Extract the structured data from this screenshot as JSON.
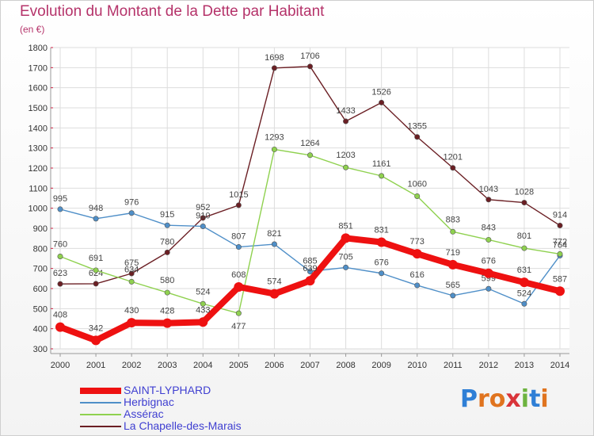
{
  "header": {
    "title": "Evolution du Montant de la Dette par Habitant",
    "unit": "(en €)"
  },
  "logo": {
    "text": "Proxiti",
    "colors": [
      "#2f7fd6",
      "#e0741f",
      "#e0741f",
      "#d9343a",
      "#6db33f",
      "#2f7fd6",
      "#e0741f"
    ]
  },
  "chart_data": {
    "type": "line",
    "title": "Evolution du Montant de la Dette par Habitant",
    "subtitle": "(en €)",
    "xlabel": "",
    "ylabel": "",
    "x": [
      "2000",
      "2001",
      "2002",
      "2003",
      "2004",
      "2005",
      "2006",
      "2007",
      "2008",
      "2009",
      "2010",
      "2011",
      "2012",
      "2013",
      "2014"
    ],
    "ylim": [
      300,
      1800
    ],
    "yticks": [
      300,
      400,
      500,
      600,
      700,
      800,
      900,
      1000,
      1100,
      1200,
      1300,
      1400,
      1500,
      1600,
      1700,
      1800
    ],
    "grid": true,
    "legend_position": "bottom-left",
    "series": [
      {
        "name": "La Chapelle-des-Marais",
        "color": "#6b1f24",
        "values": [
          623,
          624,
          675,
          780,
          952,
          1015,
          1698,
          1706,
          1433,
          1526,
          1355,
          1201,
          1043,
          1028,
          914
        ]
      },
      {
        "name": "Herbignac",
        "color": "#4f8fc8",
        "values": [
          995,
          948,
          976,
          915,
          910,
          807,
          821,
          685,
          705,
          676,
          616,
          565,
          599,
          524,
          764
        ]
      },
      {
        "name": "Assérac",
        "color": "#8fd14f",
        "values": [
          760,
          691,
          634,
          580,
          524,
          477,
          1293,
          1264,
          1203,
          1161,
          1060,
          883,
          843,
          801,
          772
        ]
      },
      {
        "name": "SAINT-LYPHARD",
        "color": "#ee1111",
        "values": [
          408,
          342,
          430,
          428,
          433,
          608,
          574,
          639,
          851,
          831,
          773,
          719,
          676,
          631,
          587
        ]
      }
    ],
    "legend_order": [
      "SAINT-LYPHARD",
      "Herbignac",
      "Assérac",
      "La Chapelle-des-Marais"
    ]
  }
}
